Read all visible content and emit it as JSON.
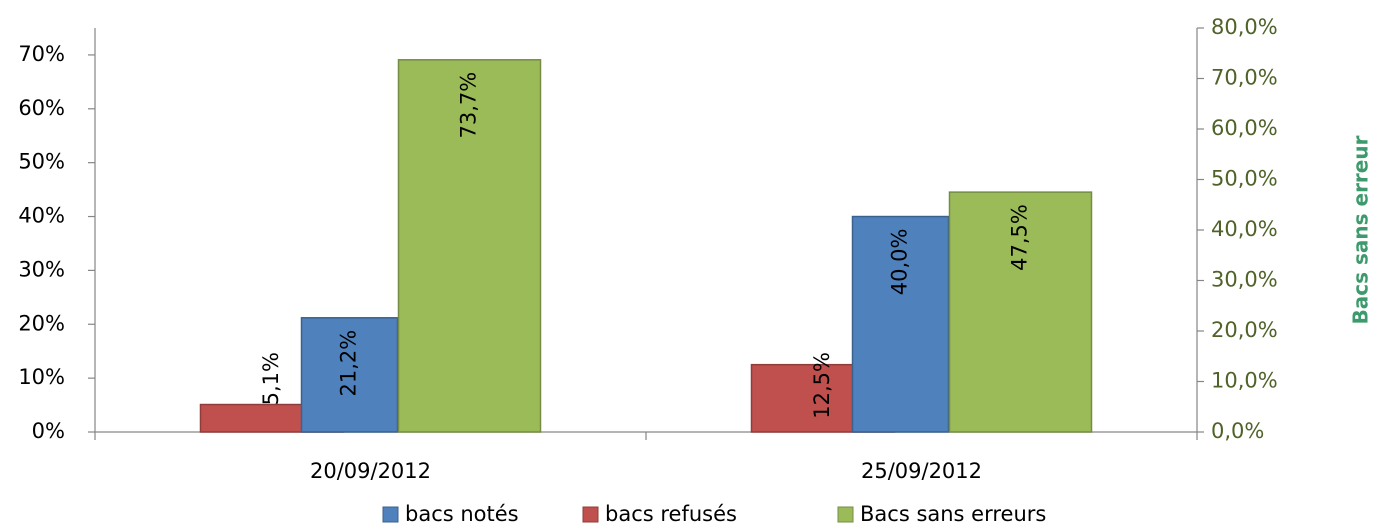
{
  "chart_data": {
    "type": "bar",
    "categories": [
      "20/09/2012",
      "25/09/2012"
    ],
    "series": [
      {
        "name": "bacs notés",
        "color": "#4f81bd",
        "values": [
          21.2,
          40.0
        ],
        "value_labels": [
          "21,2%",
          "40,0%"
        ]
      },
      {
        "name": "bacs refusés",
        "color": "#c0504d",
        "values": [
          5.1,
          12.5
        ],
        "value_labels": [
          "5,1%",
          "12,5%"
        ]
      },
      {
        "name": "Bacs sans erreurs",
        "color": "#9bbb59",
        "axis": "y2",
        "values": [
          73.7,
          47.5
        ],
        "value_labels": [
          "73,7%",
          "47,5%"
        ]
      }
    ],
    "ylim": [
      0,
      75
    ],
    "yticks": [
      {
        "value": 0,
        "label": "0%"
      },
      {
        "value": 10,
        "label": "10%"
      },
      {
        "value": 20,
        "label": "20%"
      },
      {
        "value": 30,
        "label": "30%"
      },
      {
        "value": 40,
        "label": "40%"
      },
      {
        "value": 50,
        "label": "50%"
      },
      {
        "value": 60,
        "label": "60%"
      },
      {
        "value": 70,
        "label": "70%"
      }
    ],
    "y2lim": [
      0,
      80
    ],
    "y2ticks": [
      {
        "value": 0,
        "label": "0,0%"
      },
      {
        "value": 10,
        "label": "10,0%"
      },
      {
        "value": 20,
        "label": "20,0%"
      },
      {
        "value": 30,
        "label": "30,0%"
      },
      {
        "value": 40,
        "label": "40,0%"
      },
      {
        "value": 50,
        "label": "50,0%"
      },
      {
        "value": 60,
        "label": "60,0%"
      },
      {
        "value": 70,
        "label": "70,0%"
      },
      {
        "value": 80,
        "label": "80,0%"
      }
    ],
    "y2_label": "Bacs sans erreur",
    "legend": "bottom"
  }
}
